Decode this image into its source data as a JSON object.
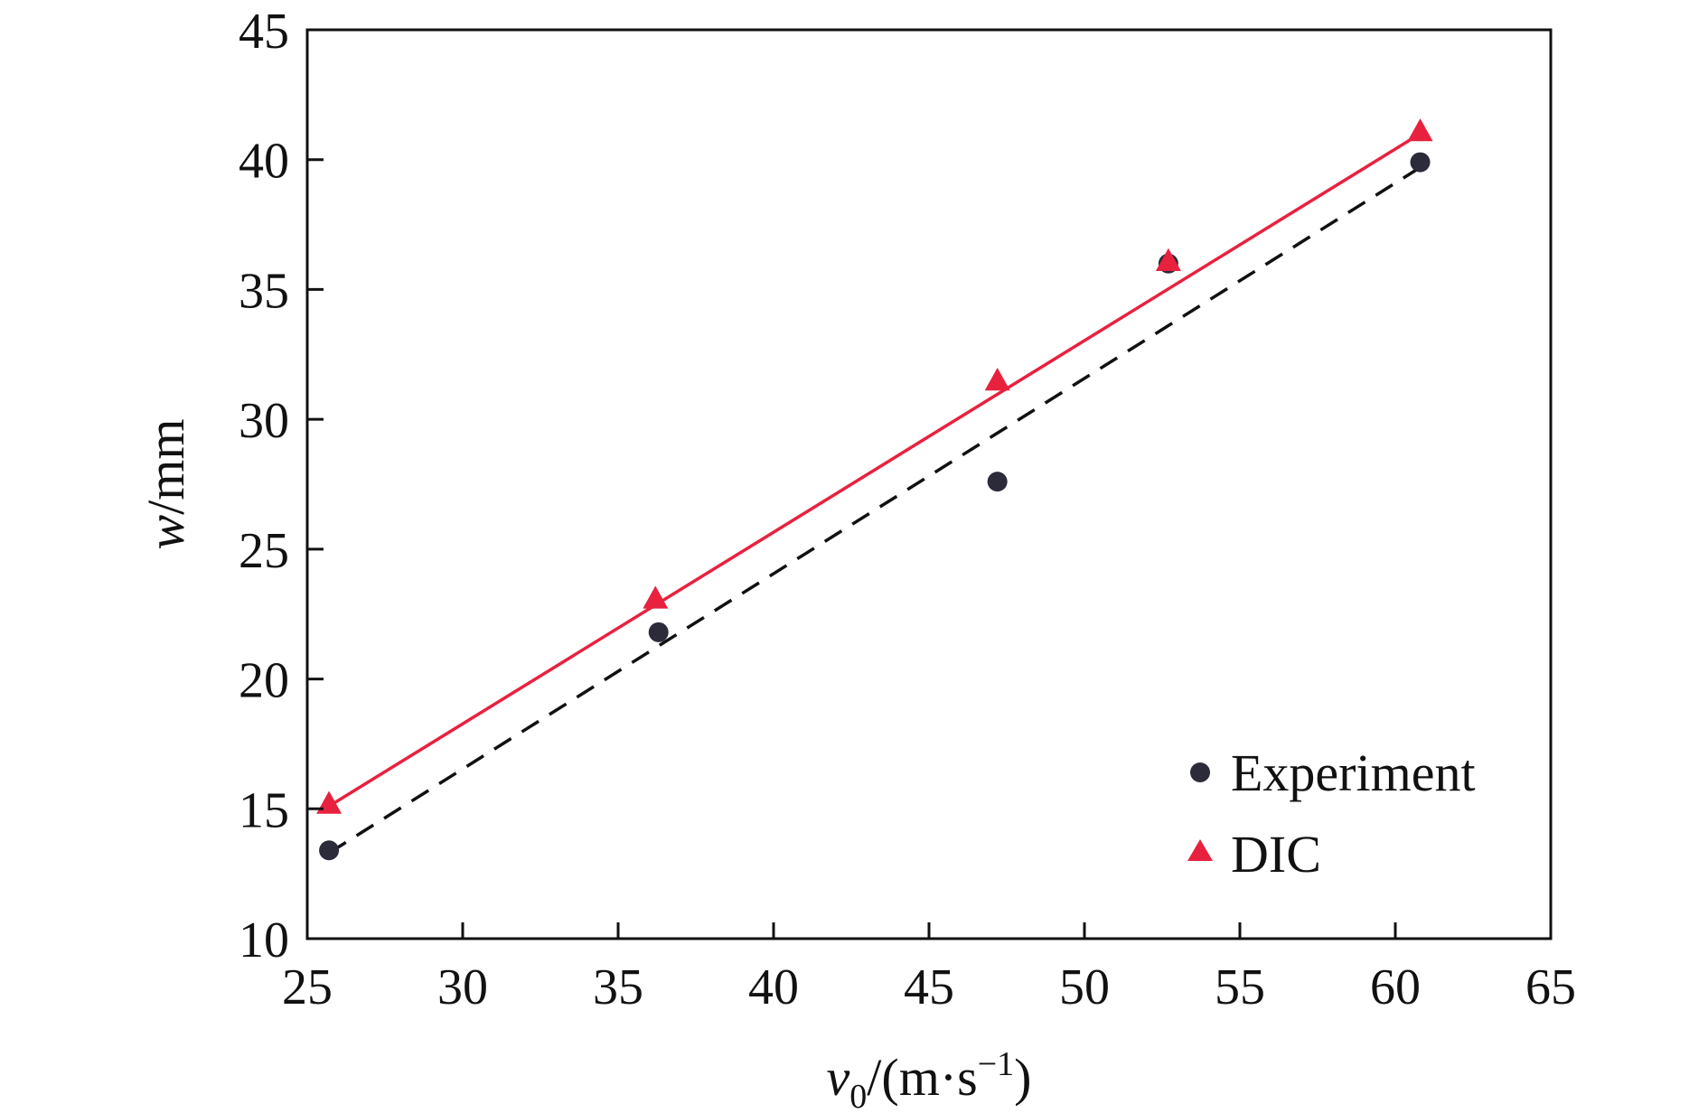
{
  "chart_data": {
    "type": "scatter",
    "xlabel": {
      "var": "v",
      "sub": "0",
      "unit_pre": "/(m·s",
      "sup": "−1",
      "unit_post": ")"
    },
    "ylabel": {
      "var": "w",
      "unit": "/mm"
    },
    "xlim": [
      25,
      65
    ],
    "ylim": [
      10,
      45
    ],
    "xticks": [
      25,
      30,
      35,
      40,
      45,
      50,
      55,
      60,
      65
    ],
    "yticks": [
      10,
      15,
      20,
      25,
      30,
      35,
      40,
      45
    ],
    "grid": false,
    "legend_position": "bottom-right",
    "series": [
      {
        "name": "Experiment",
        "marker": "circle",
        "color": "#2b2b3a",
        "x": [
          25.7,
          36.3,
          47.2,
          52.7,
          60.8
        ],
        "y": [
          13.4,
          21.8,
          27.6,
          36.0,
          39.9
        ],
        "fit": {
          "style": "dashed",
          "color": "#111111",
          "x": [
            25.7,
            60.8
          ],
          "y": [
            13.3,
            39.7
          ]
        }
      },
      {
        "name": "DIC",
        "marker": "triangle",
        "color": "#e8213f",
        "x": [
          25.7,
          36.2,
          47.2,
          52.7,
          60.8
        ],
        "y": [
          15.2,
          23.1,
          31.5,
          36.1,
          41.1
        ],
        "fit": {
          "style": "solid",
          "color": "#e8213f",
          "x": [
            25.7,
            60.8
          ],
          "y": [
            15.1,
            41.0
          ]
        }
      }
    ]
  }
}
